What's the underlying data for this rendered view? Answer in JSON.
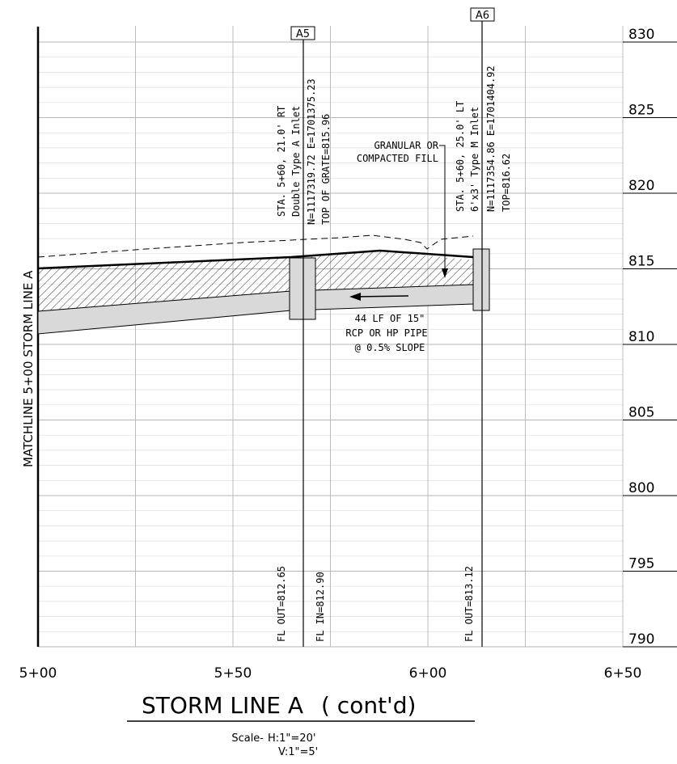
{
  "title": "STORM LINE A",
  "title_suffix": "( cont'd)",
  "scale": {
    "label": "Scale-",
    "horizontal": "H:1\"=20'",
    "vertical": "V:1\"=5'"
  },
  "matchline": "MATCHLINE 5+00 STORM LINE A",
  "stations": [
    "5+00",
    "5+50",
    "6+00",
    "6+50"
  ],
  "elevations": [
    "830",
    "825",
    "820",
    "815",
    "810",
    "805",
    "800",
    "795",
    "790"
  ],
  "structures": {
    "a5": {
      "tag": "A5",
      "note_lines": [
        "STA. 5+60, 21.0' RT",
        "Double Type A Inlet",
        "N=1117319.72 E=1701375.23",
        "TOP OF GRATE=815.96"
      ],
      "fl_out": "FL OUT=812.65",
      "fl_in": "FL IN=812.90"
    },
    "a6": {
      "tag": "A6",
      "note_lines": [
        "STA. 5+60, 25.0' LT",
        "6'x3' Type M Inlet",
        "N=1117354.86 E=1701404.92",
        "TOP=816.62"
      ],
      "fl_out": "FL OUT=813.12"
    }
  },
  "fill_note": [
    "GRANULAR OR",
    "COMPACTED FILL"
  ],
  "pipe_note": [
    "44 LF OF 15\"",
    "RCP OR HP PIPE",
    "@ 0.5% SLOPE"
  ],
  "colors": {
    "pipe_fill": "#d9d9d9",
    "grid_major": "#b5b5b5",
    "grid_minor": "#dcdcdc",
    "line": "#000000"
  }
}
